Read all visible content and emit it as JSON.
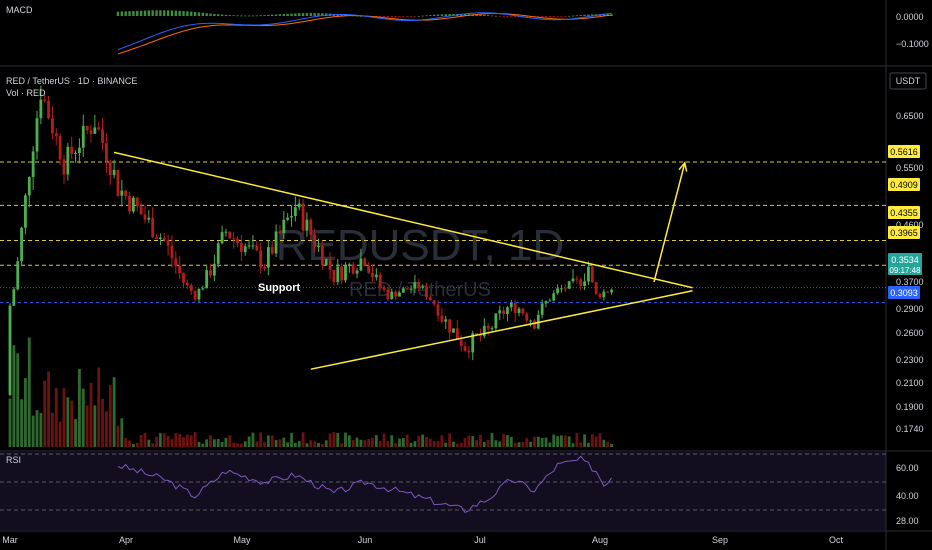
{
  "macd": {
    "label": "MACD",
    "ticks": [
      "0.0000",
      "−0.1000"
    ]
  },
  "main": {
    "symbol_line": "RED / TetherUS · 1D · BINANCE",
    "volume_line": "Vol · RED",
    "currency": "USDT",
    "watermark": "REDUSDT, 1D",
    "watermark_sub": "RED / TetherUS",
    "support_label": "Support",
    "price_ticks": [
      "0.6500",
      "0.5500",
      "0.4600",
      "0.3700",
      "0.2900",
      "0.2600",
      "0.2300",
      "0.2100",
      "0.1900",
      "0.1740"
    ],
    "level_badges": [
      "0.5616",
      "0.4909",
      "0.4355",
      "0.3965",
      "0.3093"
    ],
    "current_price": "0.3534",
    "countdown": "09:17:48"
  },
  "rsi": {
    "label": "RSI",
    "ticks": [
      "60.00",
      "40.00",
      "28.00"
    ]
  },
  "time_axis": [
    "Mar",
    "Apr",
    "May",
    "Jun",
    "Jul",
    "Aug",
    "Sep",
    "Oct"
  ],
  "colors": {
    "up": "#4caf50",
    "down": "#b71c1c",
    "trend": "#ffeb3b",
    "rsi": "#7e57c2",
    "macd": "#2962ff",
    "signal": "#ff6d00",
    "level_badge": "#ffeb3b",
    "current_badge": "#26a69a",
    "support_badge": "#2962ff"
  },
  "chart_data": {
    "type": "candlestick",
    "pair": "RED / TetherUS",
    "timeframe": "1D",
    "levels": [
      0.5616,
      0.4909,
      0.4355,
      0.3965,
      0.3093
    ],
    "current_price": 0.3534,
    "resistance_line": {
      "from": {
        "date": "Mar 28",
        "price": 0.58
      },
      "to": {
        "date": "Aug 25",
        "price": 0.353
      }
    },
    "support_line": {
      "from": {
        "date": "May 18",
        "price": 0.222
      },
      "to": {
        "date": "Aug 25",
        "price": 0.344
      }
    },
    "projection_arrow": {
      "from": {
        "date": "Aug 15",
        "price": 0.37
      },
      "to": {
        "date": "Aug 23",
        "price": 0.56
      }
    },
    "rsi_levels": [
      70,
      50,
      30
    ]
  }
}
